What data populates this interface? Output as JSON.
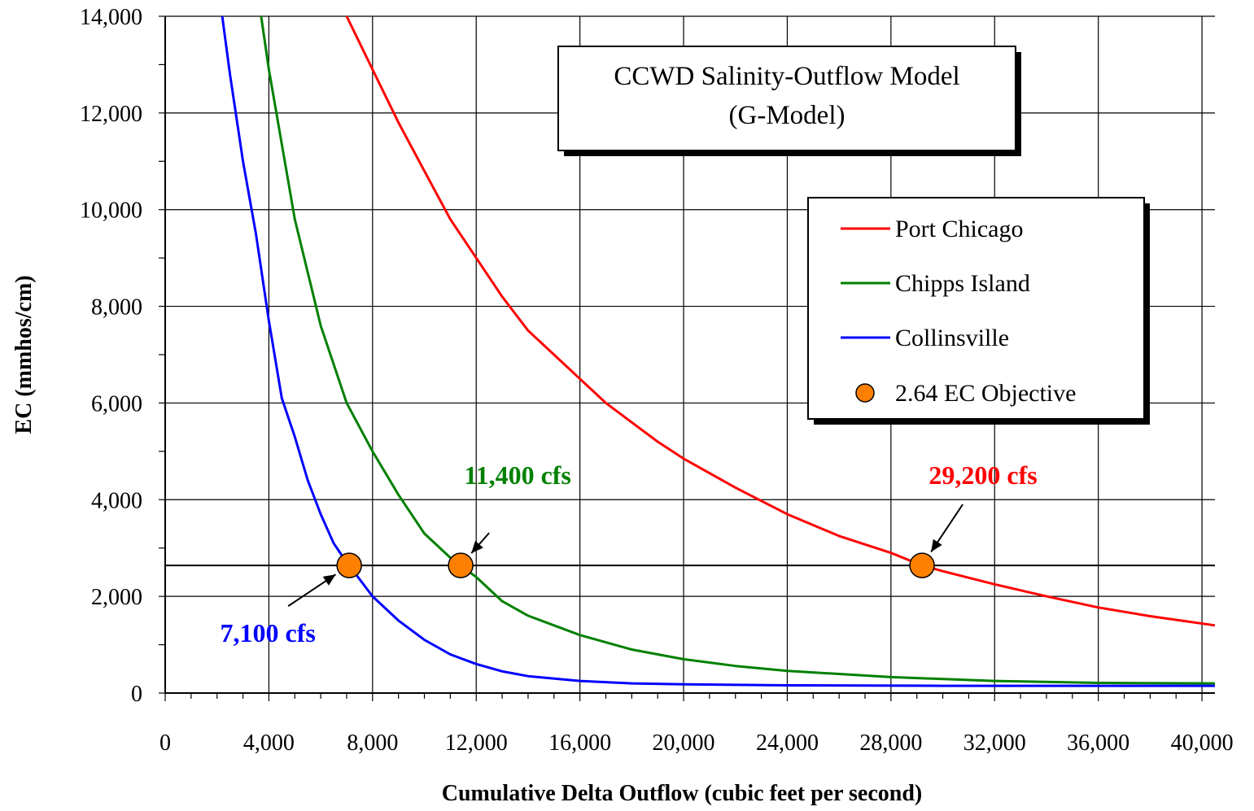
{
  "chart_data": {
    "type": "line",
    "title": "CCWD Salinity-Outflow Model",
    "subtitle": "(G-Model)",
    "xlabel": "Cumulative Delta Outflow (cubic feet per second)",
    "ylabel": "EC (mmhos/cm)",
    "xlim": [
      0,
      40500
    ],
    "ylim": [
      0,
      14000
    ],
    "x_ticks": [
      0,
      4000,
      8000,
      12000,
      16000,
      20000,
      24000,
      28000,
      32000,
      36000,
      40000
    ],
    "x_tick_labels": [
      "0",
      "4,000",
      "8,000",
      "12,000",
      "16,000",
      "20,000",
      "24,000",
      "28,000",
      "32,000",
      "36,000",
      "40,000"
    ],
    "y_ticks": [
      0,
      2000,
      4000,
      6000,
      8000,
      10000,
      12000,
      14000
    ],
    "y_tick_labels": [
      "0",
      "2,000",
      "4,000",
      "6,000",
      "8,000",
      "10,000",
      "12,000",
      "14,000"
    ],
    "grid": true,
    "legend_position": "upper-right",
    "series": [
      {
        "name": "Port Chicago",
        "color": "#ff0000",
        "x": [
          7000,
          8000,
          9000,
          10000,
          11000,
          12000,
          13000,
          14000,
          15000,
          16000,
          17000,
          18000,
          19000,
          20000,
          22000,
          24000,
          26000,
          28000,
          29200,
          30000,
          32000,
          34000,
          36000,
          38000,
          40500
        ],
        "y": [
          14000,
          12900,
          11800,
          10800,
          9800,
          9000,
          8200,
          7500,
          7000,
          6500,
          6000,
          5600,
          5200,
          4850,
          4250,
          3700,
          3250,
          2900,
          2640,
          2520,
          2250,
          2000,
          1770,
          1590,
          1400
        ]
      },
      {
        "name": "Chipps Island",
        "color": "#008000",
        "x": [
          3700,
          4000,
          5000,
          6000,
          7000,
          8000,
          9000,
          10000,
          11000,
          11400,
          12000,
          13000,
          14000,
          16000,
          18000,
          20000,
          22000,
          24000,
          28000,
          32000,
          36000,
          40500
        ],
        "y": [
          14000,
          12900,
          9800,
          7600,
          6000,
          5000,
          4100,
          3300,
          2800,
          2640,
          2400,
          1900,
          1600,
          1200,
          900,
          700,
          560,
          460,
          330,
          250,
          210,
          200
        ]
      },
      {
        "name": "Collinsville",
        "color": "#0000ff",
        "x": [
          2200,
          2500,
          3000,
          3500,
          4000,
          4500,
          5000,
          5500,
          6000,
          6500,
          7000,
          7100,
          8000,
          9000,
          10000,
          11000,
          12000,
          13000,
          14000,
          16000,
          18000,
          20000,
          24000,
          30000,
          40500
        ],
        "y": [
          14000,
          12800,
          11000,
          9500,
          7700,
          6100,
          5300,
          4400,
          3700,
          3100,
          2700,
          2640,
          2000,
          1500,
          1100,
          800,
          600,
          450,
          350,
          250,
          200,
          180,
          160,
          150,
          150
        ]
      }
    ],
    "objective": {
      "name": "2.64 EC Objective",
      "marker_color": "#ff8000",
      "line_y": 2640,
      "points": [
        {
          "x": 7100,
          "y": 2640,
          "label": "7,100 cfs",
          "color": "#0000ff"
        },
        {
          "x": 11400,
          "y": 2640,
          "label": "11,400 cfs",
          "color": "#008000"
        },
        {
          "x": 29200,
          "y": 2640,
          "label": "29,200 cfs",
          "color": "#ff0000"
        }
      ]
    }
  }
}
